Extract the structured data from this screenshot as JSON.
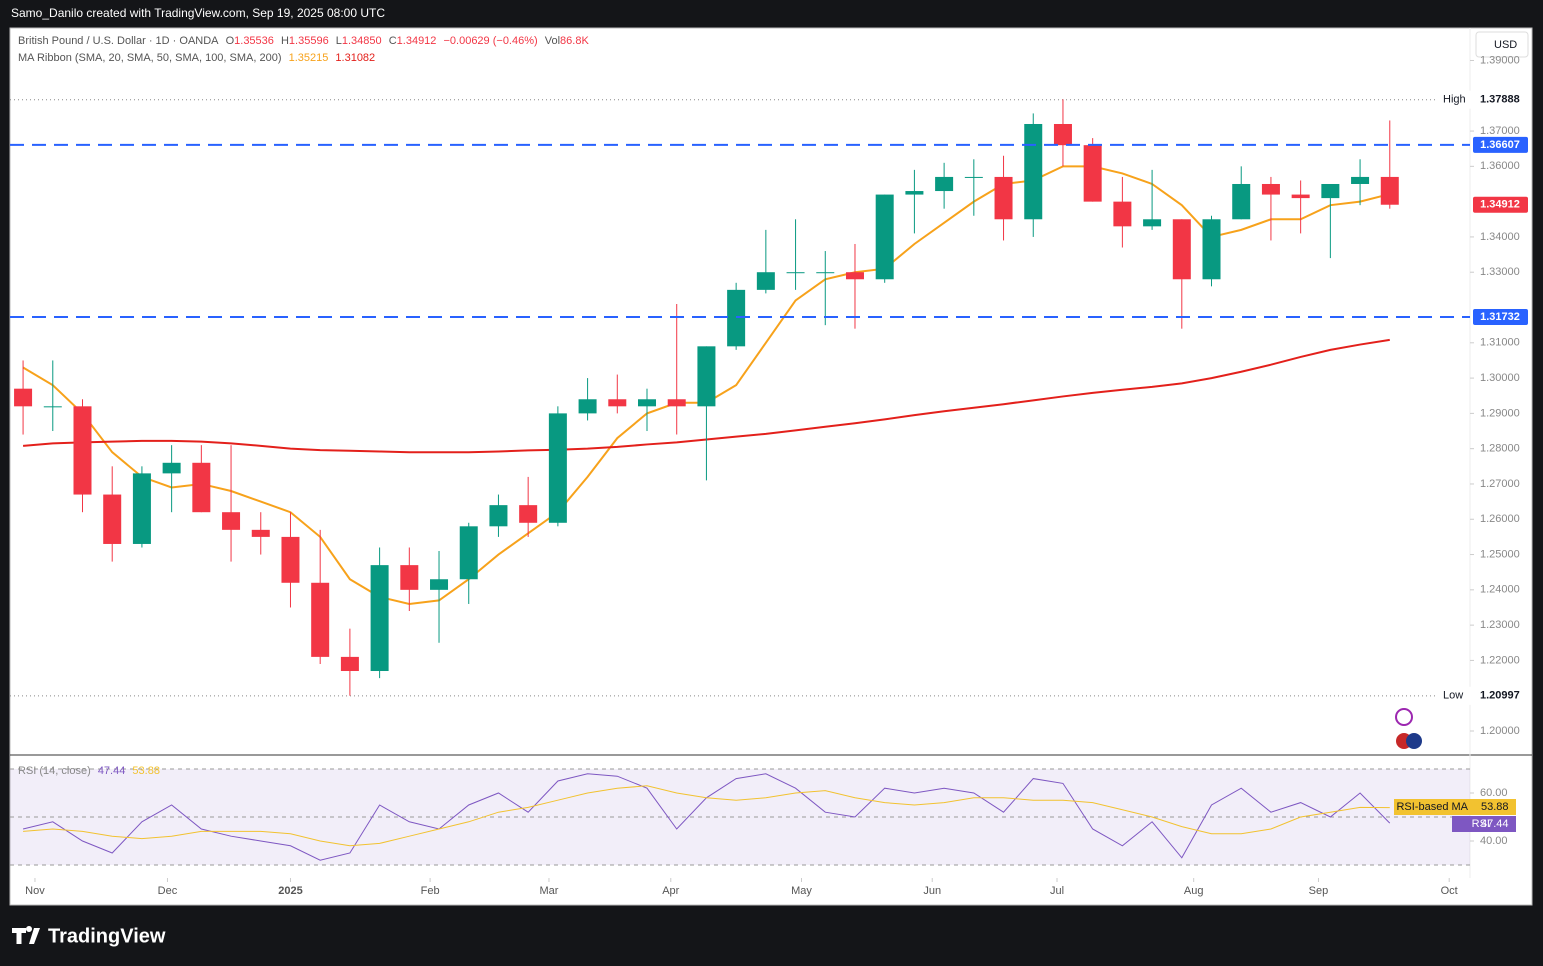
{
  "header": "Samo_Danilo created with TradingView.com, Sep 19, 2025 08:00 UTC",
  "brand": "TradingView",
  "currency": "USD",
  "legend": {
    "symbol": "British Pound / U.S. Dollar · 1D · OANDA",
    "o_label": "O",
    "o": "1.35536",
    "h_label": "H",
    "h": "1.35596",
    "l_label": "L",
    "l": "1.34850",
    "c_label": "C",
    "change": "−0.00629 (−0.46%)",
    "vol_label": "Vol",
    "vol": "86.8K",
    "indicator": "MA Ribbon (SMA, 20, SMA, 50, SMA, 100, SMA, 200)"
  },
  "chart_data": [
    {
      "type": "candlestick",
      "categories": [
        null,
        null,
        null,
        null,
        null,
        null,
        null,
        null,
        null,
        null,
        null,
        null,
        null,
        null,
        null,
        null,
        null,
        null,
        null,
        null,
        null,
        null,
        null,
        null,
        null,
        null,
        null,
        null,
        null,
        null,
        null,
        null,
        null,
        null,
        null,
        null,
        null,
        null,
        null,
        null,
        null,
        null,
        null,
        null,
        null,
        null,
        null
      ],
      "open": [
        1.297,
        1.292,
        1.292,
        1.267,
        1.253,
        1.273,
        1.276,
        1.262,
        1.257,
        1.255,
        1.242,
        1.221,
        1.217,
        1.247,
        1.24,
        1.243,
        1.258,
        1.264,
        1.259,
        1.29,
        1.294,
        1.292,
        1.294,
        1.292,
        1.309,
        1.325,
        1.33,
        1.33,
        1.33,
        1.328,
        1.352,
        1.353,
        1.357,
        1.357,
        1.345,
        1.372,
        1.366,
        1.35,
        1.343,
        1.345,
        1.328,
        1.345,
        1.355,
        1.352,
        1.351,
        1.355,
        1.357
      ],
      "high": [
        1.305,
        1.305,
        1.294,
        1.275,
        1.275,
        1.281,
        1.281,
        1.281,
        1.262,
        1.262,
        1.257,
        1.229,
        1.252,
        1.252,
        1.251,
        1.259,
        1.267,
        1.272,
        1.292,
        1.3,
        1.301,
        1.297,
        1.321,
        1.309,
        1.327,
        1.342,
        1.345,
        1.336,
        1.338,
        1.352,
        1.359,
        1.361,
        1.362,
        1.363,
        1.375,
        1.379,
        1.368,
        1.357,
        1.359,
        1.345,
        1.346,
        1.36,
        1.357,
        1.356,
        1.355,
        1.362,
        1.373
      ],
      "low": [
        1.284,
        1.285,
        1.262,
        1.248,
        1.252,
        1.262,
        1.262,
        1.248,
        1.25,
        1.235,
        1.219,
        1.21,
        1.215,
        1.234,
        1.225,
        1.236,
        1.255,
        1.255,
        1.258,
        1.288,
        1.29,
        1.285,
        1.284,
        1.271,
        1.308,
        1.324,
        1.325,
        1.315,
        1.314,
        1.327,
        1.341,
        1.348,
        1.346,
        1.339,
        1.34,
        1.36,
        1.35,
        1.337,
        1.342,
        1.314,
        1.326,
        1.345,
        1.339,
        1.341,
        1.334,
        1.349,
        1.348
      ],
      "close": [
        1.292,
        1.292,
        1.267,
        1.253,
        1.273,
        1.276,
        1.262,
        1.257,
        1.255,
        1.242,
        1.221,
        1.217,
        1.247,
        1.24,
        1.243,
        1.258,
        1.264,
        1.259,
        1.29,
        1.294,
        1.292,
        1.294,
        1.292,
        1.309,
        1.325,
        1.33,
        1.33,
        1.33,
        1.328,
        1.352,
        1.353,
        1.357,
        1.357,
        1.345,
        1.372,
        1.366,
        1.35,
        1.343,
        1.345,
        1.328,
        1.345,
        1.355,
        1.352,
        1.351,
        1.355,
        1.357,
        1.34912
      ],
      "up_color": "#089981",
      "down_color": "#f23645",
      "series": [
        {
          "color": "#f7a21b",
          "values": [
            1.303,
            1.298,
            1.29,
            1.279,
            1.272,
            1.269,
            1.27,
            1.268,
            1.265,
            1.262,
            1.255,
            1.243,
            1.238,
            1.236,
            1.237,
            1.243,
            1.25,
            1.256,
            1.262,
            1.272,
            1.283,
            1.29,
            1.293,
            1.293,
            1.298,
            1.31,
            1.322,
            1.328,
            1.33,
            1.331,
            1.338,
            1.344,
            1.35,
            1.355,
            1.356,
            1.36,
            1.36,
            1.358,
            1.355,
            1.349,
            1.34,
            1.342,
            1.345,
            1.345,
            1.349,
            1.35,
            1.35215
          ]
        },
        {
          "color": "#e3201b",
          "values": [
            1.2808,
            1.2815,
            1.2818,
            1.282,
            1.2822,
            1.2822,
            1.282,
            1.2815,
            1.2808,
            1.28,
            1.2796,
            1.2794,
            1.2792,
            1.279,
            1.279,
            1.279,
            1.2792,
            1.2795,
            1.2797,
            1.28,
            1.2805,
            1.2812,
            1.2818,
            1.2826,
            1.2834,
            1.2842,
            1.2852,
            1.2862,
            1.2872,
            1.2883,
            1.2895,
            1.2906,
            1.2916,
            1.2926,
            1.2937,
            1.2948,
            1.2958,
            1.2967,
            1.2975,
            1.2985,
            1.3,
            1.3018,
            1.3038,
            1.306,
            1.308,
            1.3095,
            1.31082
          ]
        }
      ],
      "levels": [
        {
          "value": 1.36607,
          "color": "#2962ff"
        },
        {
          "value": 1.31732,
          "color": "#2962ff"
        }
      ],
      "extremes": [
        {
          "label": "High",
          "value": 1.37888
        },
        {
          "label": "Low",
          "value": 1.20997
        }
      ],
      "xlim": [
        -0.44,
        48.7
      ],
      "ylim": [
        1.1932,
        1.3992
      ],
      "xticks": [
        {
          "value": 0.4,
          "label": "Nov"
        },
        {
          "value": 4.86,
          "label": "Dec"
        },
        {
          "value": 9.0,
          "label": "2025"
        },
        {
          "value": 13.7,
          "label": "Feb"
        },
        {
          "value": 17.7,
          "label": "Mar"
        },
        {
          "value": 21.8,
          "label": "Apr"
        },
        {
          "value": 26.2,
          "label": "May"
        },
        {
          "value": 30.6,
          "label": "Jun"
        },
        {
          "value": 34.8,
          "label": "Jul"
        },
        {
          "value": 39.4,
          "label": "Aug"
        },
        {
          "value": 43.6,
          "label": "Sep"
        },
        {
          "value": 48.0,
          "label": "Oct"
        }
      ],
      "yticks": [
        {
          "value": 1.2,
          "label": "1.20000"
        },
        {
          "value": 1.22,
          "label": "1.22000"
        },
        {
          "value": 1.23,
          "label": "1.23000"
        },
        {
          "value": 1.24,
          "label": "1.24000"
        },
        {
          "value": 1.25,
          "label": "1.25000"
        },
        {
          "value": 1.26,
          "label": "1.26000"
        },
        {
          "value": 1.27,
          "label": "1.27000"
        },
        {
          "value": 1.28,
          "label": "1.28000"
        },
        {
          "value": 1.29,
          "label": "1.29000"
        },
        {
          "value": 1.3,
          "label": "1.30000"
        },
        {
          "value": 1.31,
          "label": "1.31000"
        },
        {
          "value": 1.33,
          "label": "1.33000"
        },
        {
          "value": 1.34,
          "label": "1.34000"
        },
        {
          "value": 1.36,
          "label": "1.36000"
        },
        {
          "value": 1.37,
          "label": "1.37000"
        },
        {
          "value": 1.39,
          "label": "1.39000"
        }
      ]
    },
    {
      "type": "line",
      "title": "RSI (14, close)",
      "series": [
        {
          "name": "RSI",
          "color": "#7e57c2",
          "values": [
            45,
            48,
            40,
            35,
            48,
            55,
            45,
            42,
            40,
            38,
            32,
            35,
            55,
            48,
            45,
            55,
            60,
            52,
            65,
            68,
            67,
            62,
            45,
            58,
            66,
            68,
            62,
            52,
            50,
            62,
            60,
            62,
            60,
            52,
            66,
            64,
            45,
            38,
            48,
            33,
            55,
            62,
            52,
            56,
            50,
            60,
            47.44
          ]
        },
        {
          "name": "RSI-based MA",
          "color": "#f2c230",
          "values": [
            44,
            45,
            44,
            42,
            41,
            42,
            44,
            44,
            44,
            43,
            40,
            38,
            39,
            42,
            45,
            48,
            52,
            54,
            57,
            60,
            62,
            63,
            60,
            58,
            57,
            58,
            60,
            61,
            58,
            56,
            55,
            56,
            58,
            58,
            57,
            57,
            56,
            53,
            50,
            46,
            43,
            43,
            45,
            50,
            52,
            54,
            53.88
          ]
        }
      ],
      "bands": [
        70,
        50,
        30
      ],
      "ylim": [
        25.83,
        73.75
      ],
      "yticks": [
        {
          "value": 60,
          "label": "60.00"
        },
        {
          "value": 40,
          "label": "40.00"
        }
      ]
    }
  ]
}
